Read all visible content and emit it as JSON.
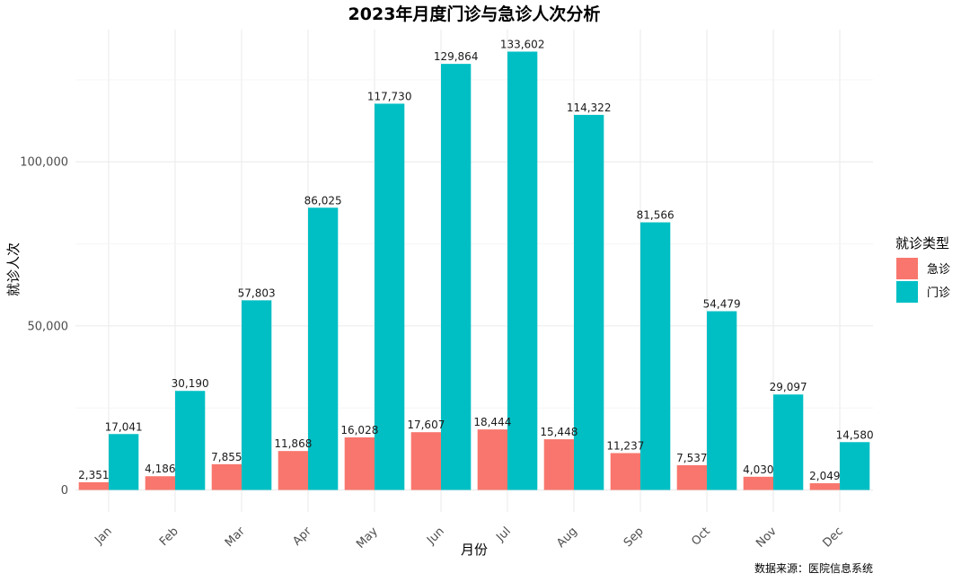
{
  "chart_data": {
    "type": "bar",
    "title": "2023年月度门诊与急诊人次分析",
    "xlabel": "月份",
    "ylabel": "就诊人次",
    "caption": "数据来源：医院信息系统",
    "categories": [
      "Jan",
      "Feb",
      "Mar",
      "Apr",
      "May",
      "Jun",
      "Jul",
      "Aug",
      "Sep",
      "Oct",
      "Nov",
      "Dec"
    ],
    "series": [
      {
        "name": "急诊",
        "color": "#F8766D",
        "values": [
          2351,
          4186,
          7855,
          11868,
          16028,
          17607,
          18444,
          15448,
          11237,
          7537,
          4030,
          2049
        ],
        "labels": [
          "2,351",
          "4,186",
          "7,855",
          "11,868",
          "16,028",
          "17,607",
          "18,444",
          "15,448",
          "11,237",
          "7,537",
          "4,030",
          "2,049"
        ]
      },
      {
        "name": "门诊",
        "color": "#00BFC4",
        "values": [
          17041,
          30190,
          57803,
          86025,
          117730,
          129864,
          133602,
          114322,
          81566,
          54479,
          29097,
          14580
        ],
        "labels": [
          "17,041",
          "30,190",
          "57,803",
          "86,025",
          "117,730",
          "129,864",
          "133,602",
          "114,322",
          "81,566",
          "54,479",
          "29,097",
          "14,580"
        ]
      }
    ],
    "ylim": [
      -6700,
      140300
    ],
    "y_ticks": [
      0,
      50000,
      100000
    ],
    "y_tick_labels": [
      "0",
      "50,000",
      "100,000"
    ],
    "legend": {
      "title": "就诊类型",
      "position": "right"
    },
    "grid": true
  }
}
